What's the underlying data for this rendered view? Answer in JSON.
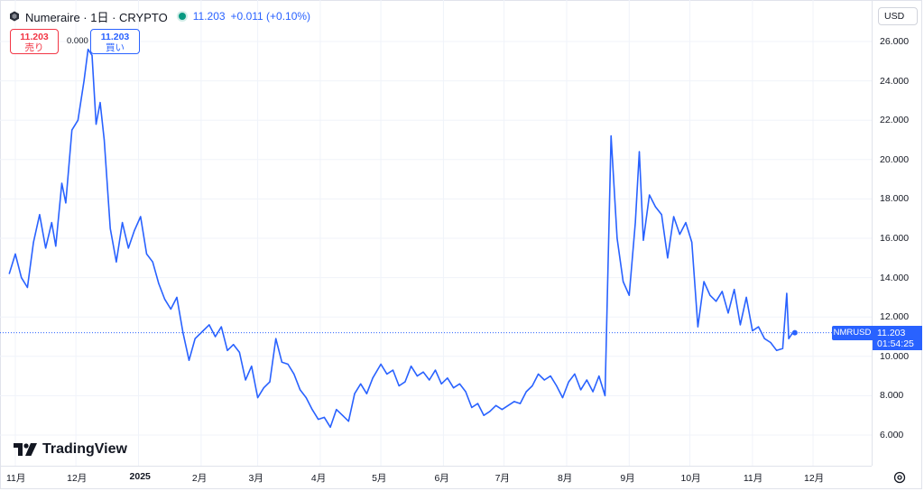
{
  "header": {
    "title": "Numeraire · 1日 · CRYPTO",
    "price": "11.203",
    "change": "+0.011 (+0.10%)",
    "icon": "coin-icon",
    "live_color": "#089981"
  },
  "trade": {
    "sell_price": "11.203",
    "sell_label": "売り",
    "spread": "0.000",
    "buy_price": "11.203",
    "buy_label": "買い"
  },
  "price_axis": {
    "currency": "USD",
    "labels": [
      "26.000",
      "24.000",
      "22.000",
      "20.000",
      "18.000",
      "16.000",
      "14.000",
      "12.000",
      "10.000",
      "8.000",
      "6.000"
    ]
  },
  "time_axis": {
    "labels": [
      "11月",
      "12月",
      "2025",
      "2月",
      "3月",
      "4月",
      "5月",
      "6月",
      "7月",
      "8月",
      "9月",
      "10月",
      "11月",
      "12月"
    ]
  },
  "current": {
    "symbol": "NMRUSD",
    "price": "11.203",
    "countdown": "01:54:25"
  },
  "brand": {
    "name": "TradingView"
  },
  "colors": {
    "line": "#2962ff",
    "sell": "#f23645",
    "buy": "#2962ff",
    "grid": "#f0f3fa"
  },
  "chart_data": {
    "type": "line",
    "title": "Numeraire · 1日 · CRYPTO",
    "ylim": [
      5.0,
      27.0
    ],
    "grid": true,
    "series": [
      {
        "name": "NMRUSD",
        "points": [
          [
            "2024-10-29",
            14.2
          ],
          [
            "2024-11-01",
            15.2
          ],
          [
            "2024-11-04",
            14.0
          ],
          [
            "2024-11-07",
            13.5
          ],
          [
            "2024-11-10",
            15.8
          ],
          [
            "2024-11-13",
            17.2
          ],
          [
            "2024-11-16",
            15.5
          ],
          [
            "2024-11-19",
            16.8
          ],
          [
            "2024-11-21",
            15.6
          ],
          [
            "2024-11-24",
            18.8
          ],
          [
            "2024-11-26",
            17.8
          ],
          [
            "2024-11-29",
            21.5
          ],
          [
            "2024-12-02",
            22.0
          ],
          [
            "2024-12-05",
            24.0
          ],
          [
            "2024-12-07",
            25.6
          ],
          [
            "2024-12-09",
            25.3
          ],
          [
            "2024-12-11",
            21.8
          ],
          [
            "2024-12-13",
            22.9
          ],
          [
            "2024-12-15",
            21.0
          ],
          [
            "2024-12-18",
            16.5
          ],
          [
            "2024-12-21",
            14.8
          ],
          [
            "2024-12-24",
            16.8
          ],
          [
            "2024-12-27",
            15.5
          ],
          [
            "2024-12-30",
            16.4
          ],
          [
            "2025-01-02",
            17.1
          ],
          [
            "2025-01-05",
            15.2
          ],
          [
            "2025-01-08",
            14.8
          ],
          [
            "2025-01-11",
            13.7
          ],
          [
            "2025-01-14",
            12.9
          ],
          [
            "2025-01-17",
            12.4
          ],
          [
            "2025-01-20",
            13.0
          ],
          [
            "2025-01-23",
            11.2
          ],
          [
            "2025-01-26",
            9.8
          ],
          [
            "2025-01-29",
            10.9
          ],
          [
            "2025-02-02",
            11.3
          ],
          [
            "2025-02-05",
            11.6
          ],
          [
            "2025-02-08",
            11.0
          ],
          [
            "2025-02-11",
            11.5
          ],
          [
            "2025-02-14",
            10.3
          ],
          [
            "2025-02-17",
            10.6
          ],
          [
            "2025-02-20",
            10.2
          ],
          [
            "2025-02-23",
            8.8
          ],
          [
            "2025-02-26",
            9.5
          ],
          [
            "2025-03-01",
            7.9
          ],
          [
            "2025-03-04",
            8.4
          ],
          [
            "2025-03-07",
            8.7
          ],
          [
            "2025-03-10",
            10.9
          ],
          [
            "2025-03-13",
            9.7
          ],
          [
            "2025-03-16",
            9.6
          ],
          [
            "2025-03-19",
            9.1
          ],
          [
            "2025-03-22",
            8.3
          ],
          [
            "2025-03-25",
            7.9
          ],
          [
            "2025-03-28",
            7.3
          ],
          [
            "2025-03-31",
            6.8
          ],
          [
            "2025-04-03",
            6.9
          ],
          [
            "2025-04-06",
            6.4
          ],
          [
            "2025-04-09",
            7.3
          ],
          [
            "2025-04-12",
            7.0
          ],
          [
            "2025-04-15",
            6.7
          ],
          [
            "2025-04-18",
            8.1
          ],
          [
            "2025-04-21",
            8.6
          ],
          [
            "2025-04-24",
            8.1
          ],
          [
            "2025-04-27",
            8.9
          ],
          [
            "2025-05-01",
            9.6
          ],
          [
            "2025-05-04",
            9.1
          ],
          [
            "2025-05-07",
            9.3
          ],
          [
            "2025-05-10",
            8.5
          ],
          [
            "2025-05-13",
            8.7
          ],
          [
            "2025-05-16",
            9.5
          ],
          [
            "2025-05-19",
            9.0
          ],
          [
            "2025-05-22",
            9.2
          ],
          [
            "2025-05-25",
            8.8
          ],
          [
            "2025-05-28",
            9.3
          ],
          [
            "2025-05-31",
            8.6
          ],
          [
            "2025-06-03",
            8.9
          ],
          [
            "2025-06-06",
            8.4
          ],
          [
            "2025-06-09",
            8.6
          ],
          [
            "2025-06-12",
            8.2
          ],
          [
            "2025-06-15",
            7.4
          ],
          [
            "2025-06-18",
            7.6
          ],
          [
            "2025-06-21",
            7.0
          ],
          [
            "2025-06-24",
            7.2
          ],
          [
            "2025-06-27",
            7.5
          ],
          [
            "2025-06-30",
            7.3
          ],
          [
            "2025-07-03",
            7.5
          ],
          [
            "2025-07-06",
            7.7
          ],
          [
            "2025-07-09",
            7.6
          ],
          [
            "2025-07-12",
            8.2
          ],
          [
            "2025-07-15",
            8.5
          ],
          [
            "2025-07-18",
            9.1
          ],
          [
            "2025-07-21",
            8.8
          ],
          [
            "2025-07-24",
            9.0
          ],
          [
            "2025-07-27",
            8.5
          ],
          [
            "2025-07-30",
            7.9
          ],
          [
            "2025-08-02",
            8.7
          ],
          [
            "2025-08-05",
            9.1
          ],
          [
            "2025-08-08",
            8.3
          ],
          [
            "2025-08-11",
            8.8
          ],
          [
            "2025-08-14",
            8.2
          ],
          [
            "2025-08-17",
            9.0
          ],
          [
            "2025-08-20",
            8.0
          ],
          [
            "2025-08-23",
            21.2
          ],
          [
            "2025-08-26",
            16.0
          ],
          [
            "2025-08-29",
            13.8
          ],
          [
            "2025-09-01",
            13.1
          ],
          [
            "2025-09-04",
            16.8
          ],
          [
            "2025-09-06",
            20.4
          ],
          [
            "2025-09-08",
            15.9
          ],
          [
            "2025-09-11",
            18.2
          ],
          [
            "2025-09-14",
            17.6
          ],
          [
            "2025-09-17",
            17.2
          ],
          [
            "2025-09-20",
            15.0
          ],
          [
            "2025-09-23",
            17.1
          ],
          [
            "2025-09-26",
            16.2
          ],
          [
            "2025-09-29",
            16.8
          ],
          [
            "2025-10-02",
            15.8
          ],
          [
            "2025-10-05",
            11.5
          ],
          [
            "2025-10-08",
            13.8
          ],
          [
            "2025-10-11",
            13.1
          ],
          [
            "2025-10-14",
            12.8
          ],
          [
            "2025-10-17",
            13.3
          ],
          [
            "2025-10-20",
            12.2
          ],
          [
            "2025-10-23",
            13.4
          ],
          [
            "2025-10-26",
            11.6
          ],
          [
            "2025-10-29",
            13.0
          ],
          [
            "2025-11-01",
            11.3
          ],
          [
            "2025-11-04",
            11.5
          ],
          [
            "2025-11-07",
            10.9
          ],
          [
            "2025-11-10",
            10.7
          ],
          [
            "2025-11-13",
            10.3
          ],
          [
            "2025-11-16",
            10.4
          ],
          [
            "2025-11-18",
            13.2
          ],
          [
            "2025-11-19",
            10.9
          ],
          [
            "2025-11-21",
            11.2
          ],
          [
            "2025-11-22",
            11.203
          ]
        ]
      }
    ]
  }
}
